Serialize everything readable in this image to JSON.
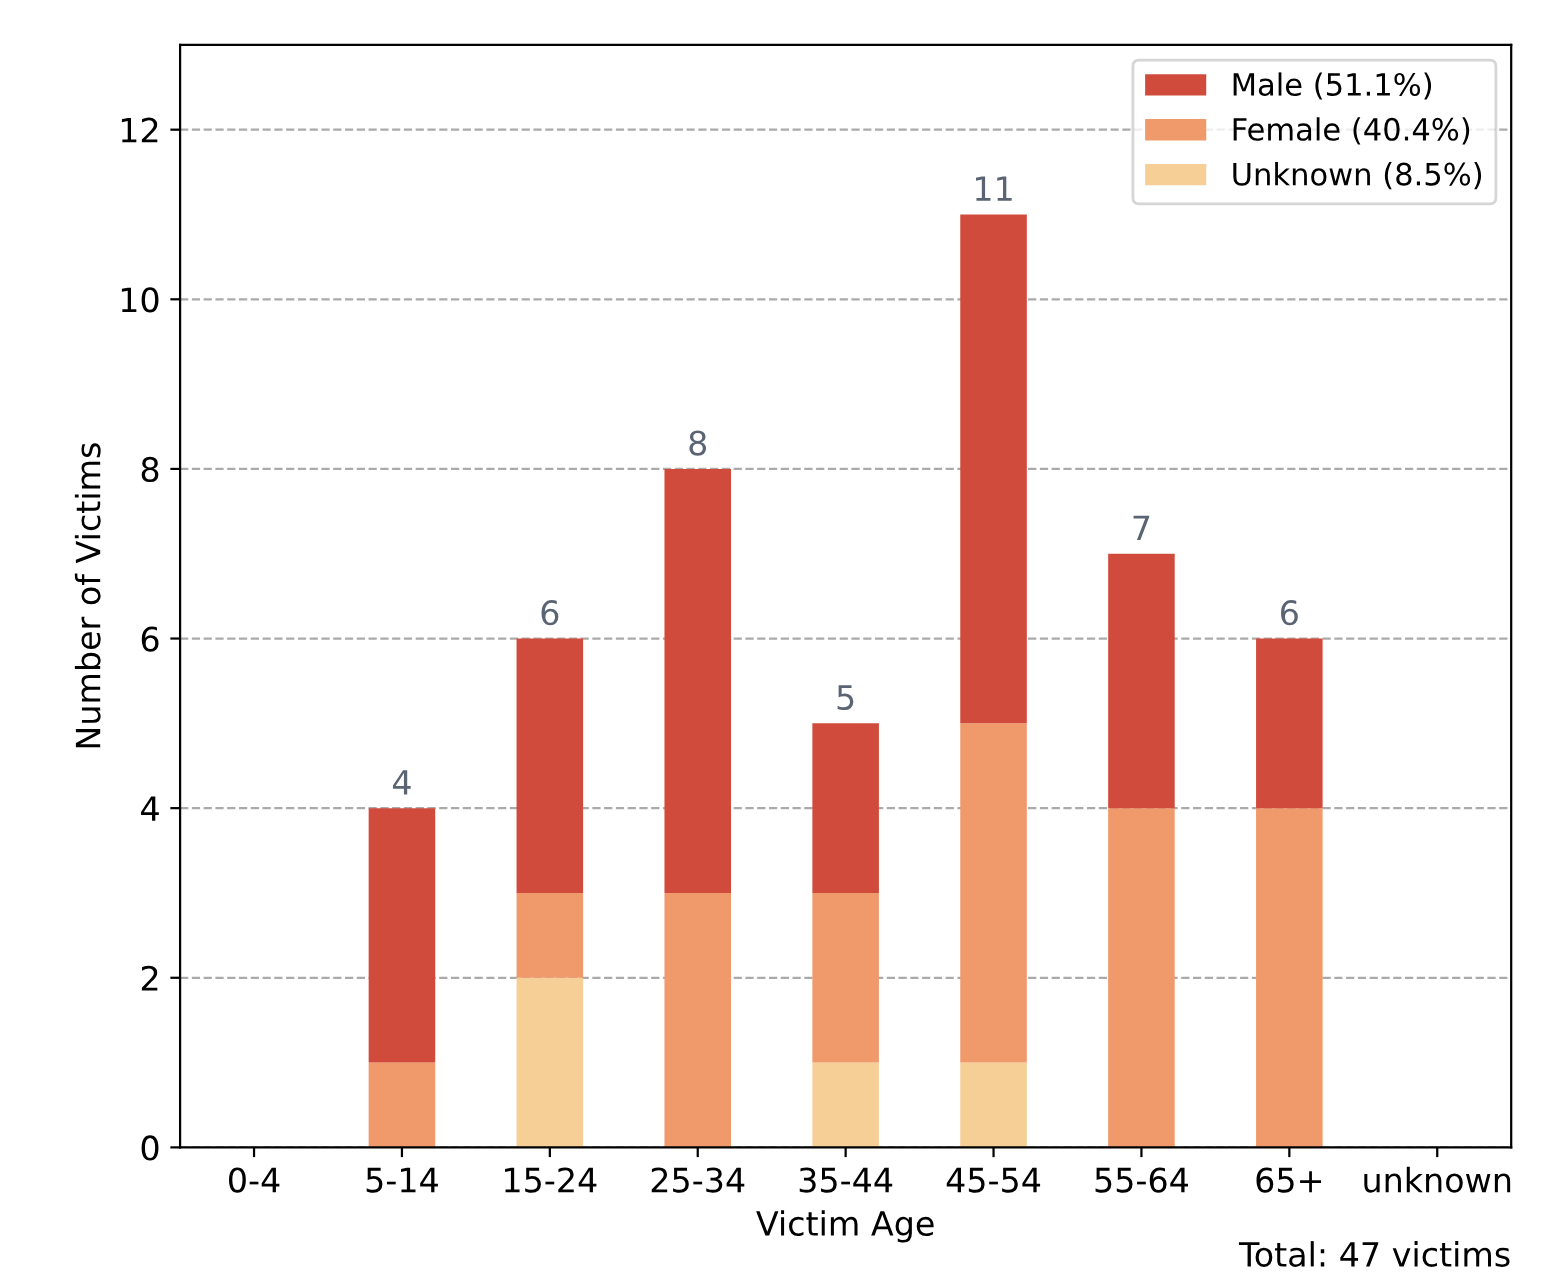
{
  "chart_data": {
    "type": "bar",
    "stacked": true,
    "xlabel": "Victim Age",
    "ylabel": "Number of Victims",
    "categories": [
      "0-4",
      "5-14",
      "15-24",
      "25-34",
      "35-44",
      "45-54",
      "55-64",
      "65+",
      "unknown"
    ],
    "series": [
      {
        "name": "Unknown (8.5%)",
        "color": "#f6cf97",
        "values": [
          0,
          0,
          2,
          0,
          1,
          1,
          0,
          0,
          0
        ]
      },
      {
        "name": "Female (40.4%)",
        "color": "#f0996b",
        "values": [
          0,
          1,
          1,
          3,
          2,
          4,
          4,
          4,
          0
        ]
      },
      {
        "name": "Male (51.1%)",
        "color": "#d14b3c",
        "values": [
          0,
          3,
          3,
          5,
          2,
          6,
          3,
          2,
          0
        ]
      }
    ],
    "totals": [
      null,
      "4",
      "6",
      "8",
      "5",
      "11",
      "7",
      "6",
      null
    ],
    "ylim": [
      0,
      13
    ],
    "yticks": [
      0,
      2,
      4,
      6,
      8,
      10,
      12
    ],
    "grid": "y",
    "legend": "top right",
    "annotations": [
      "Total: 47 victims"
    ]
  }
}
